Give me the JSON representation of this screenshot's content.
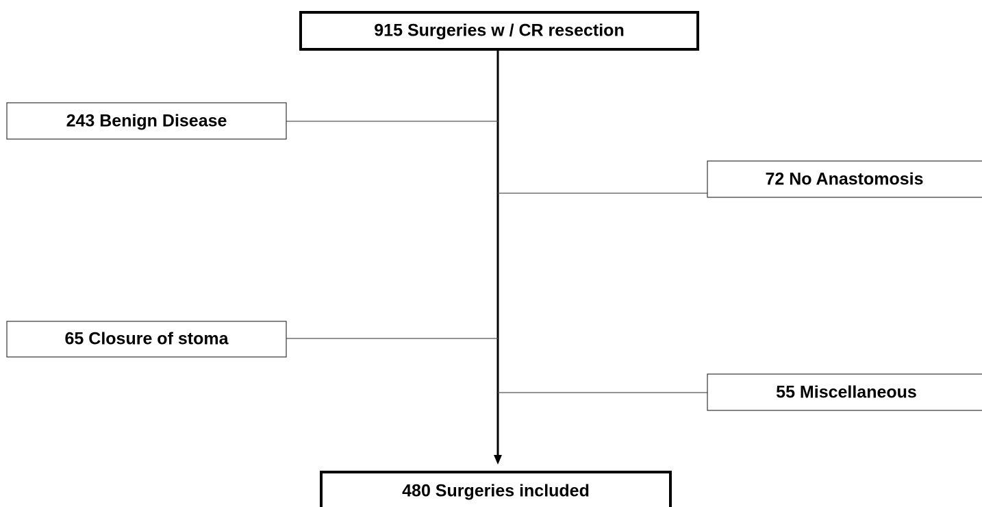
{
  "nodes": [
    {
      "label": "915 Surgeries w / CR resection"
    },
    {
      "label": "243 Benign Disease"
    },
    {
      "label": "72 No Anastomosis"
    },
    {
      "label": "65 Closure of stoma"
    },
    {
      "label": "55 Miscellaneous"
    },
    {
      "label": "480 Surgeries included"
    }
  ]
}
